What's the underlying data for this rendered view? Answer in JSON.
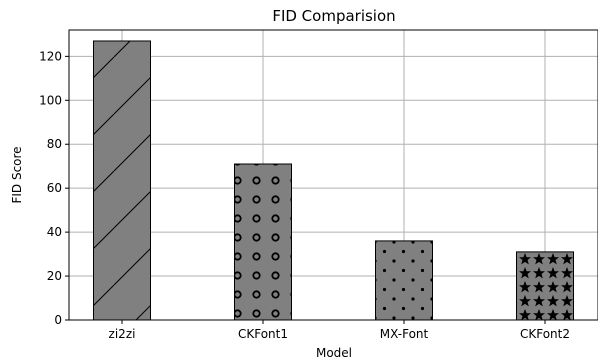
{
  "chart_data": {
    "type": "bar",
    "title": "FID Comparision",
    "xlabel": "Model",
    "ylabel": "FID Score",
    "categories": [
      "zi2zi",
      "CKFont1",
      "MX-Font",
      "CKFont2"
    ],
    "values": [
      127,
      71,
      36,
      31
    ],
    "hatches": [
      "diagonal",
      "circles",
      "dots",
      "stars"
    ],
    "bar_color": "#808080",
    "ylim": [
      0,
      132
    ],
    "yticks": [
      0,
      20,
      40,
      60,
      80,
      100,
      120
    ],
    "grid": true
  }
}
